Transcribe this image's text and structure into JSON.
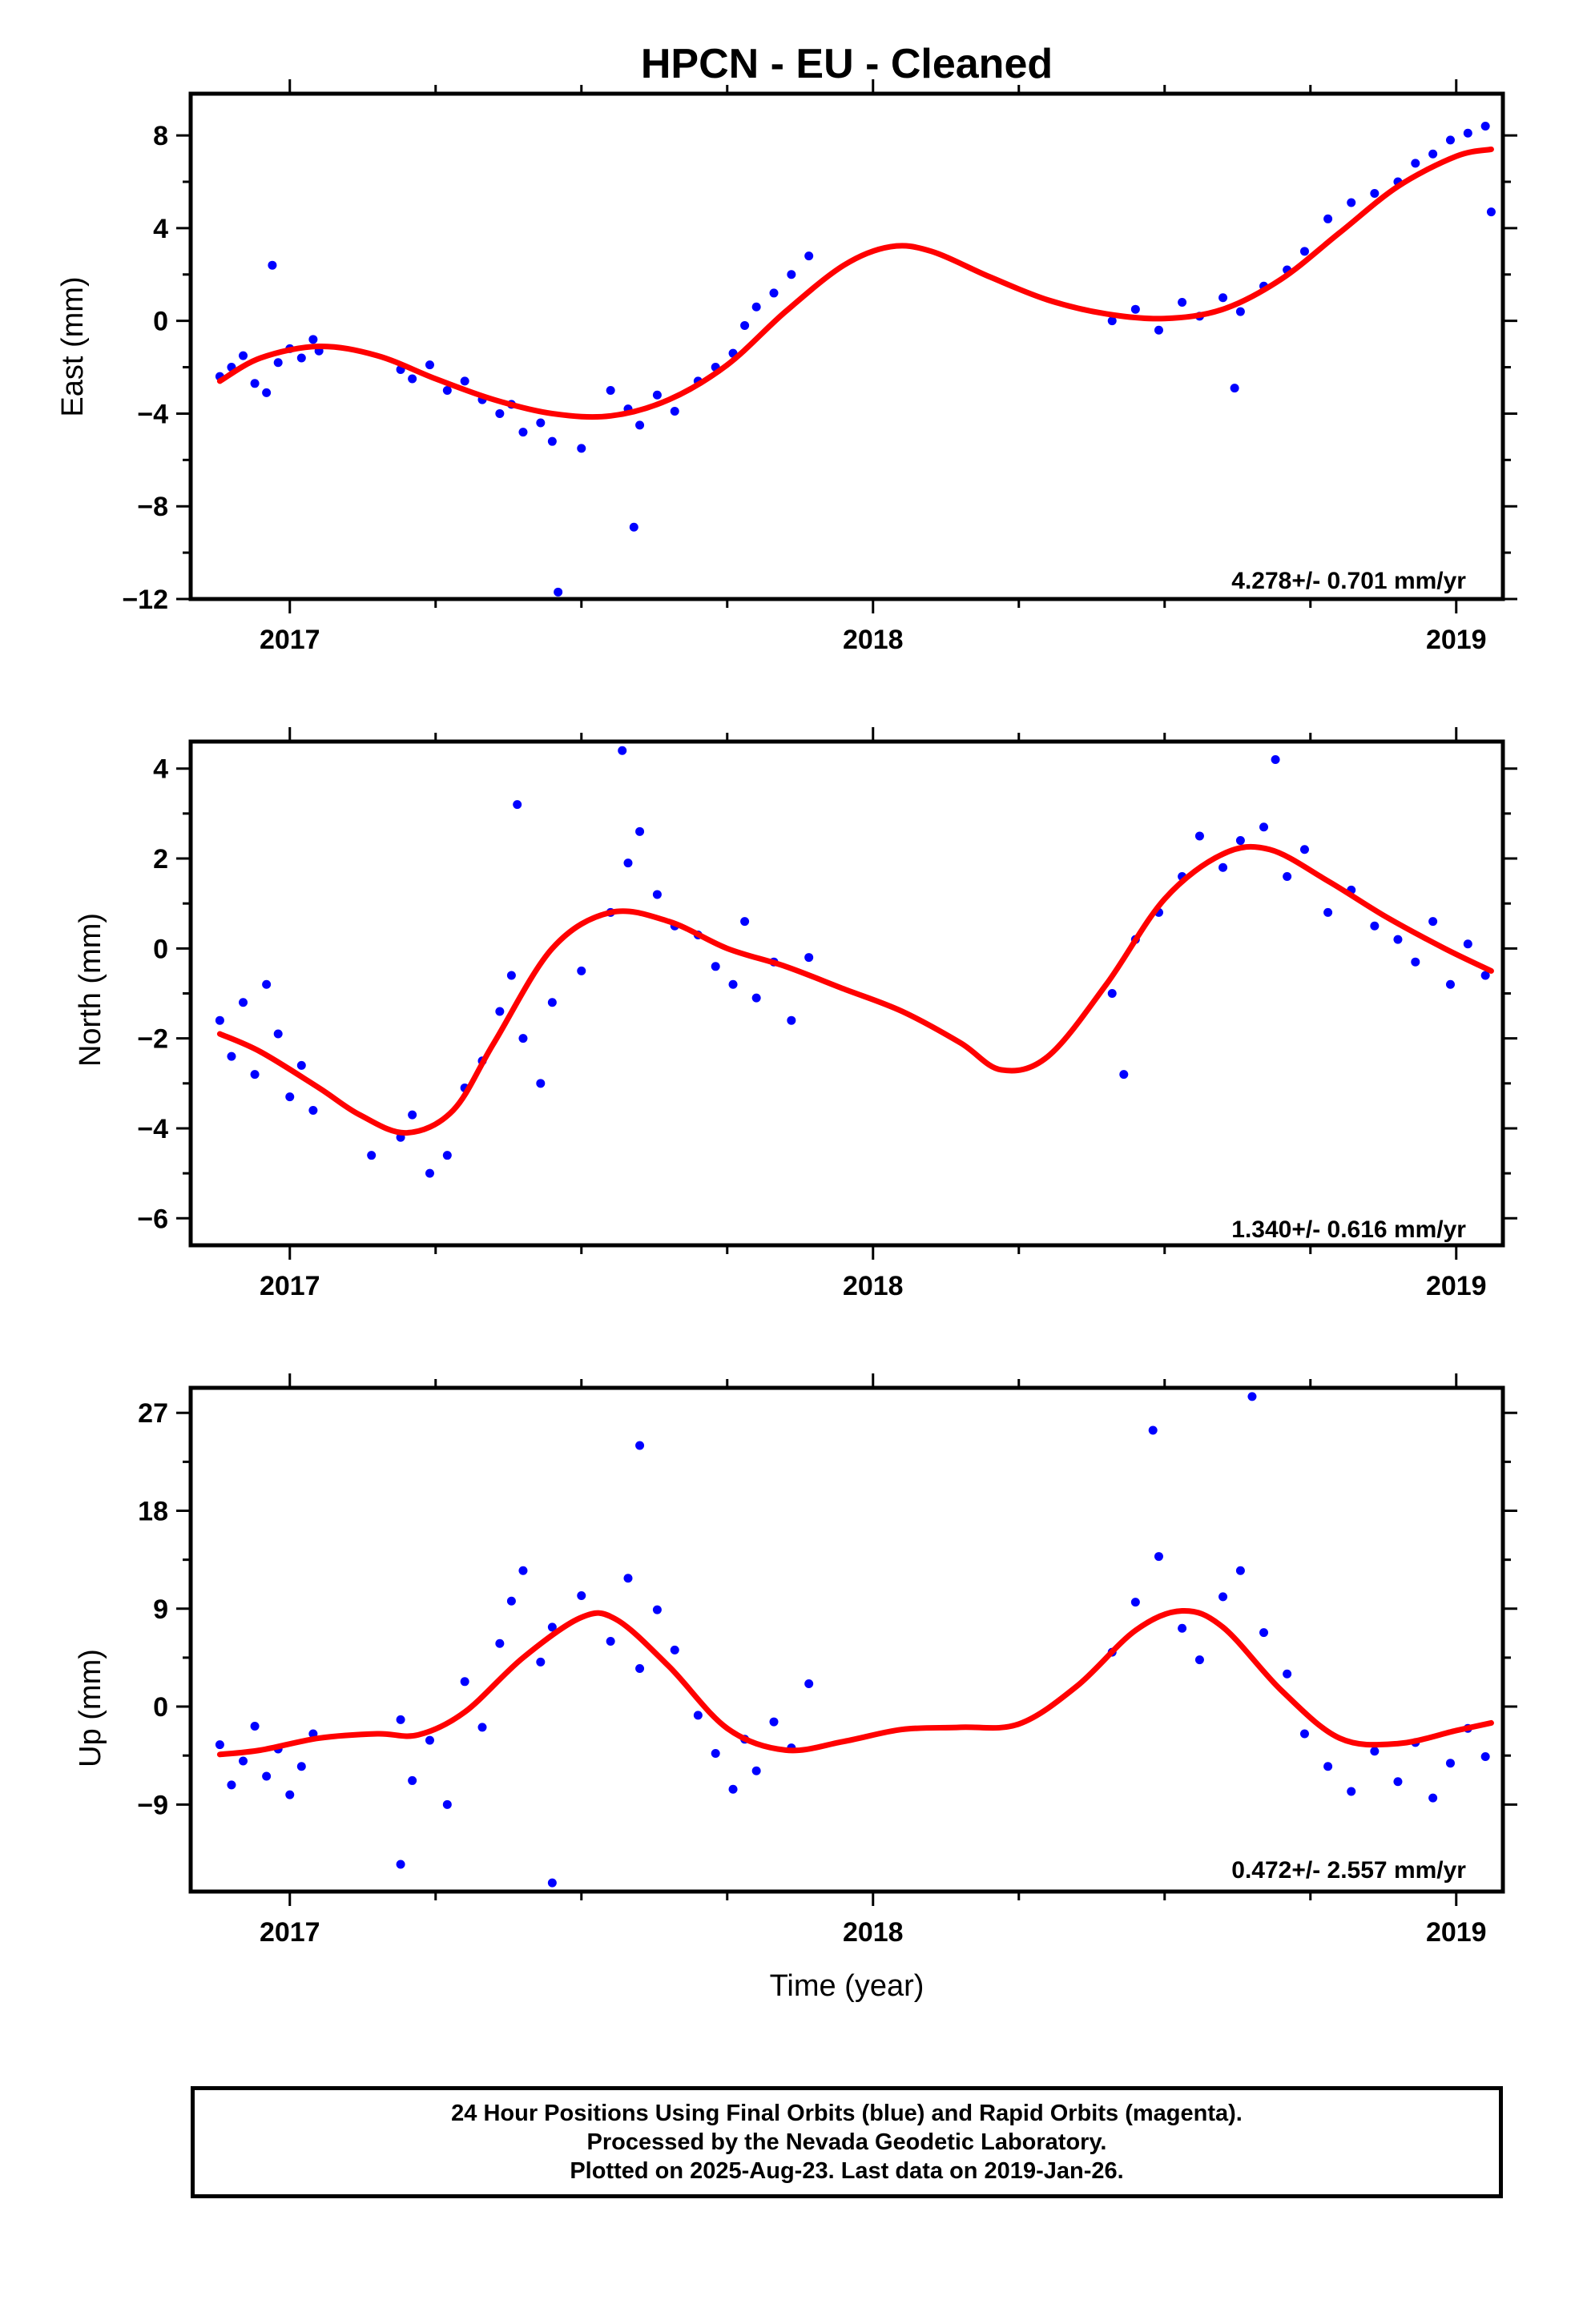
{
  "title": "HPCN  - EU - Cleaned",
  "xlabel": "Time (year)",
  "footer": {
    "line1": "24 Hour Positions Using Final Orbits (blue) and Rapid Orbits (magenta).",
    "line2": "Processed by the Nevada Geodetic Laboratory.",
    "line3": "Plotted on 2025-Aug-23. Last data on 2019-Jan-26."
  },
  "colors": {
    "points": "#0000ff",
    "fit": "#ff0000",
    "frame": "#000000"
  },
  "chart_data": [
    {
      "type": "scatter",
      "ylabel": "East (mm)",
      "rate_text": "4.278+/- 0.701 mm/yr",
      "xlim": [
        2016.83,
        2019.08
      ],
      "ylim": [
        -12,
        9.8
      ],
      "xticks": [
        2017,
        2018,
        2019
      ],
      "xtick_labels": [
        "2017",
        "2018",
        "2019"
      ],
      "yticks": [
        -12,
        -8,
        -4,
        0,
        4,
        8
      ],
      "ytick_labels": [
        "−12",
        "−8",
        "−4",
        "0",
        "4",
        "8"
      ],
      "series": [
        {
          "type": "scatter",
          "x": [
            2016.88,
            2016.9,
            2016.92,
            2016.94,
            2016.96,
            2016.98,
            2017.0,
            2017.02,
            2017.04,
            2017.05,
            2017.19,
            2017.21,
            2017.24,
            2017.27,
            2017.3,
            2017.33,
            2017.36,
            2017.38,
            2017.4,
            2017.43,
            2017.45,
            2017.5,
            2017.55,
            2017.58,
            2017.6,
            2017.63,
            2017.66,
            2017.7,
            2017.73,
            2017.76,
            2017.78,
            2017.8,
            2017.83,
            2017.86,
            2017.89,
            2018.41,
            2018.45,
            2018.49,
            2018.53,
            2018.56,
            2018.6,
            2018.63,
            2018.67,
            2018.71,
            2018.74,
            2018.78,
            2018.82,
            2018.86,
            2018.9,
            2018.93,
            2018.96,
            2018.99,
            2019.02,
            2019.05,
            2017.46,
            2017.59,
            2016.97,
            2018.62,
            2019.06
          ],
          "y": [
            -2.4,
            -2.0,
            -1.5,
            -2.7,
            -3.1,
            -1.8,
            -1.2,
            -1.6,
            -0.8,
            -1.3,
            -2.1,
            -2.5,
            -1.9,
            -3.0,
            -2.6,
            -3.4,
            -4.0,
            -3.6,
            -4.8,
            -4.4,
            -5.2,
            -5.5,
            -3.0,
            -3.8,
            -4.5,
            -3.2,
            -3.9,
            -2.6,
            -2.0,
            -1.4,
            -0.2,
            0.6,
            1.2,
            2.0,
            2.8,
            0.0,
            0.5,
            -0.4,
            0.8,
            0.2,
            1.0,
            0.4,
            1.5,
            2.2,
            3.0,
            4.4,
            5.1,
            5.5,
            6.0,
            6.8,
            7.2,
            7.8,
            8.1,
            8.4,
            -11.7,
            -8.9,
            2.4,
            -2.9,
            4.7
          ]
        },
        {
          "type": "line",
          "x": [
            2016.88,
            2016.95,
            2017.05,
            2017.15,
            2017.25,
            2017.35,
            2017.45,
            2017.55,
            2017.65,
            2017.75,
            2017.85,
            2017.95,
            2018.03,
            2018.1,
            2018.2,
            2018.3,
            2018.4,
            2018.5,
            2018.6,
            2018.7,
            2018.8,
            2018.9,
            2019.0,
            2019.06
          ],
          "y": [
            -2.6,
            -1.6,
            -1.1,
            -1.5,
            -2.5,
            -3.4,
            -4.0,
            -4.1,
            -3.4,
            -1.9,
            0.4,
            2.4,
            3.2,
            3.0,
            1.9,
            0.9,
            0.3,
            0.1,
            0.5,
            1.8,
            3.8,
            5.8,
            7.1,
            7.4
          ]
        }
      ]
    },
    {
      "type": "scatter",
      "ylabel": "North (mm)",
      "rate_text": "1.340+/- 0.616 mm/yr",
      "xlim": [
        2016.83,
        2019.08
      ],
      "ylim": [
        -6.6,
        4.6
      ],
      "xticks": [
        2017,
        2018,
        2019
      ],
      "xtick_labels": [
        "2017",
        "2018",
        "2019"
      ],
      "yticks": [
        -6,
        -4,
        -2,
        0,
        2,
        4
      ],
      "ytick_labels": [
        "−6",
        "−4",
        "−2",
        "0",
        "2",
        "4"
      ],
      "series": [
        {
          "type": "scatter",
          "x": [
            2016.88,
            2016.9,
            2016.92,
            2016.94,
            2016.96,
            2016.98,
            2017.0,
            2017.02,
            2017.04,
            2017.19,
            2017.21,
            2017.24,
            2017.27,
            2017.3,
            2017.33,
            2017.36,
            2017.38,
            2017.4,
            2017.43,
            2017.45,
            2017.5,
            2017.55,
            2017.58,
            2017.6,
            2017.63,
            2017.66,
            2017.7,
            2017.73,
            2017.76,
            2017.78,
            2017.8,
            2017.83,
            2017.86,
            2017.89,
            2018.41,
            2018.45,
            2018.49,
            2018.53,
            2018.56,
            2018.6,
            2018.63,
            2018.67,
            2018.71,
            2018.74,
            2018.78,
            2018.82,
            2018.86,
            2018.9,
            2018.93,
            2018.96,
            2018.99,
            2019.02,
            2019.05,
            2017.39,
            2017.57,
            2018.69,
            2018.43,
            2017.14
          ],
          "y": [
            -1.6,
            -2.4,
            -1.2,
            -2.8,
            -0.8,
            -1.9,
            -3.3,
            -2.6,
            -3.6,
            -4.2,
            -3.7,
            -5.0,
            -4.6,
            -3.1,
            -2.5,
            -1.4,
            -0.6,
            -2.0,
            -3.0,
            -1.2,
            -0.5,
            0.8,
            1.9,
            2.6,
            1.2,
            0.5,
            0.3,
            -0.4,
            -0.8,
            0.6,
            -1.1,
            -0.3,
            -1.6,
            -0.2,
            -1.0,
            0.2,
            0.8,
            1.6,
            2.5,
            1.8,
            2.4,
            2.7,
            1.6,
            2.2,
            0.8,
            1.3,
            0.5,
            0.2,
            -0.3,
            0.6,
            -0.8,
            0.1,
            -0.6,
            3.2,
            4.4,
            4.2,
            -2.8,
            -4.6
          ],
          "_note": "data values only"
        },
        {
          "type": "line",
          "x": [
            2016.88,
            2016.95,
            2017.05,
            2017.12,
            2017.2,
            2017.28,
            2017.35,
            2017.45,
            2017.55,
            2017.65,
            2017.75,
            2017.85,
            2017.95,
            2018.05,
            2018.15,
            2018.22,
            2018.3,
            2018.4,
            2018.5,
            2018.6,
            2018.68,
            2018.78,
            2018.88,
            2018.98,
            2019.06
          ],
          "y": [
            -1.9,
            -2.3,
            -3.1,
            -3.7,
            -4.1,
            -3.6,
            -2.1,
            0.0,
            0.8,
            0.6,
            0.0,
            -0.4,
            -0.9,
            -1.4,
            -2.1,
            -2.7,
            -2.4,
            -0.8,
            1.1,
            2.1,
            2.2,
            1.5,
            0.7,
            0.0,
            -0.5
          ]
        }
      ]
    },
    {
      "type": "scatter",
      "ylabel": "Up (mm)",
      "rate_text": "0.472+/- 2.557 mm/yr",
      "xlim": [
        2016.83,
        2019.08
      ],
      "ylim": [
        -17,
        29.3
      ],
      "xticks": [
        2017,
        2018,
        2019
      ],
      "xtick_labels": [
        "2017",
        "2018",
        "2019"
      ],
      "yticks": [
        -9,
        0,
        9,
        18,
        27
      ],
      "ytick_labels": [
        "−9",
        "0",
        "9",
        "18",
        "27"
      ],
      "series": [
        {
          "type": "scatter",
          "x": [
            2016.88,
            2016.9,
            2016.92,
            2016.94,
            2016.96,
            2016.98,
            2017.0,
            2017.02,
            2017.04,
            2017.19,
            2017.21,
            2017.24,
            2017.27,
            2017.3,
            2017.33,
            2017.36,
            2017.38,
            2017.4,
            2017.43,
            2017.45,
            2017.5,
            2017.55,
            2017.58,
            2017.6,
            2017.63,
            2017.66,
            2017.7,
            2017.73,
            2017.76,
            2017.78,
            2017.8,
            2017.83,
            2017.86,
            2017.89,
            2018.41,
            2018.45,
            2018.49,
            2018.53,
            2018.56,
            2018.6,
            2018.63,
            2018.67,
            2018.71,
            2018.74,
            2018.78,
            2018.82,
            2018.86,
            2018.9,
            2018.93,
            2018.96,
            2018.99,
            2019.02,
            2019.05,
            2017.45,
            2017.6,
            2018.65,
            2018.48,
            2017.19
          ],
          "y": [
            -3.5,
            -7.2,
            -5.0,
            -1.8,
            -6.4,
            -3.9,
            -8.1,
            -5.5,
            -2.5,
            -1.2,
            -6.8,
            -3.1,
            -9.0,
            2.3,
            -1.9,
            5.8,
            9.7,
            12.5,
            4.1,
            7.3,
            10.2,
            6.0,
            11.8,
            3.5,
            8.9,
            5.2,
            -0.8,
            -4.3,
            -7.6,
            -3.0,
            -5.9,
            -1.4,
            -3.8,
            2.1,
            5.0,
            9.6,
            13.8,
            7.2,
            4.3,
            10.1,
            12.5,
            6.8,
            3.0,
            -2.5,
            -5.5,
            -7.8,
            -4.1,
            -6.9,
            -3.3,
            -8.4,
            -5.2,
            -2.0,
            -4.6,
            -16.2,
            24.0,
            28.5,
            25.4,
            -14.5
          ]
        },
        {
          "type": "line",
          "x": [
            2016.88,
            2016.95,
            2017.05,
            2017.15,
            2017.22,
            2017.3,
            2017.4,
            2017.5,
            2017.56,
            2017.65,
            2017.75,
            2017.85,
            2017.95,
            2018.05,
            2018.15,
            2018.25,
            2018.35,
            2018.45,
            2018.53,
            2018.6,
            2018.7,
            2018.8,
            2018.9,
            2019.0,
            2019.06
          ],
          "y": [
            -4.4,
            -4.0,
            -2.9,
            -2.5,
            -2.6,
            -0.5,
            4.5,
            8.2,
            8.0,
            3.7,
            -2.0,
            -4.0,
            -3.2,
            -2.1,
            -1.9,
            -1.6,
            1.9,
            7.0,
            8.8,
            7.3,
            1.5,
            -2.9,
            -3.4,
            -2.2,
            -1.5
          ]
        }
      ]
    }
  ]
}
